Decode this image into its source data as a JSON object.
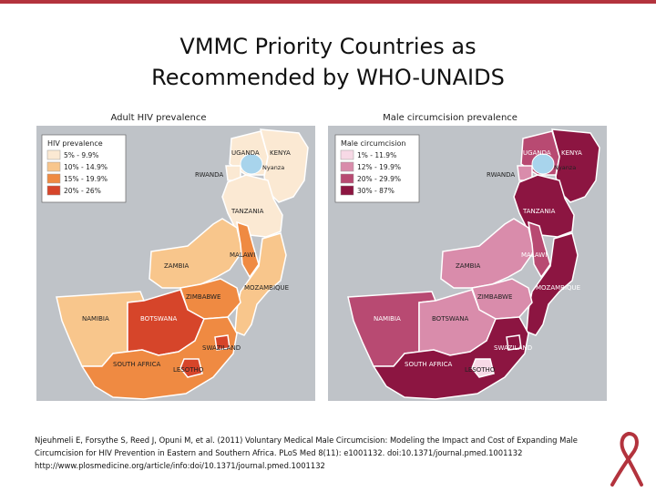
{
  "slide": {
    "title_line1": "VMMC Priority Countries as",
    "title_line2": "Recommended by WHO-UNAIDS",
    "accent_color": "#b3333d"
  },
  "left_map": {
    "title": "Adult HIV prevalence",
    "legend_title": "HIV prevalence",
    "legend": [
      {
        "label": "5% - 9.9%",
        "color": "#fbe9d3"
      },
      {
        "label": "10% - 14.9%",
        "color": "#f8c68c"
      },
      {
        "label": "15% - 19.9%",
        "color": "#ef8a42"
      },
      {
        "label": "20% - 26%",
        "color": "#d6452a"
      }
    ],
    "labels": {
      "uganda": "UGANDA",
      "kenya": "KENYA",
      "nyanza": "Nyanza",
      "rwanda": "RWANDA",
      "tanzania": "TANZANIA",
      "malawi": "MALAWI",
      "zambia": "ZAMBIA",
      "mozambique": "MOZAMBIQUE",
      "zimbabwe": "ZIMBABWE",
      "namibia": "NAMIBIA",
      "botswana": "BOTSWANA",
      "swaziland": "SWAZILAND",
      "south_africa": "SOUTH AFRICA",
      "lesotho": "LESOTHO"
    }
  },
  "right_map": {
    "title": "Male circumcision prevalence",
    "legend_title": "Male circumcision",
    "legend": [
      {
        "label": "1% - 11.9%",
        "color": "#f7d9e6"
      },
      {
        "label": "12% - 19.9%",
        "color": "#d98cab"
      },
      {
        "label": "20% - 29.9%",
        "color": "#b84a72"
      },
      {
        "label": "30% - 87%",
        "color": "#8c1541"
      }
    ],
    "labels": {
      "uganda": "UGANDA",
      "kenya": "KENYA",
      "nyanza": "Nyanza",
      "rwanda": "RWANDA",
      "tanzania": "TANZANIA",
      "malawi": "MALAWI",
      "zambia": "ZAMBIA",
      "mozambique": "MOZAMBIQUE",
      "zimbabwe": "ZIMBABWE",
      "namibia": "NAMIBIA",
      "botswana": "BOTSWANA",
      "swaziland": "SWAZILAND",
      "south_africa": "SOUTH AFRICA",
      "lesotho": "LESOTHO"
    }
  },
  "map_colors": {
    "background": "#bfc3c8",
    "lake": "#a8d4ec",
    "border": "#ffffff"
  },
  "citation": {
    "line1": "Njeuhmeli E, Forsythe S, Reed J, Opuni M, et al. (2011) Voluntary Medical Male Circumcision: Modeling the Impact and Cost of Expanding Male",
    "line2": "Circumcision for HIV Prevention in Eastern and Southern Africa. PLoS Med 8(11): e1001132. doi:10.1371/journal.pmed.1001132",
    "line3": "http://www.plosmedicine.org/article/info:doi/10.1371/journal.pmed.1001132"
  }
}
